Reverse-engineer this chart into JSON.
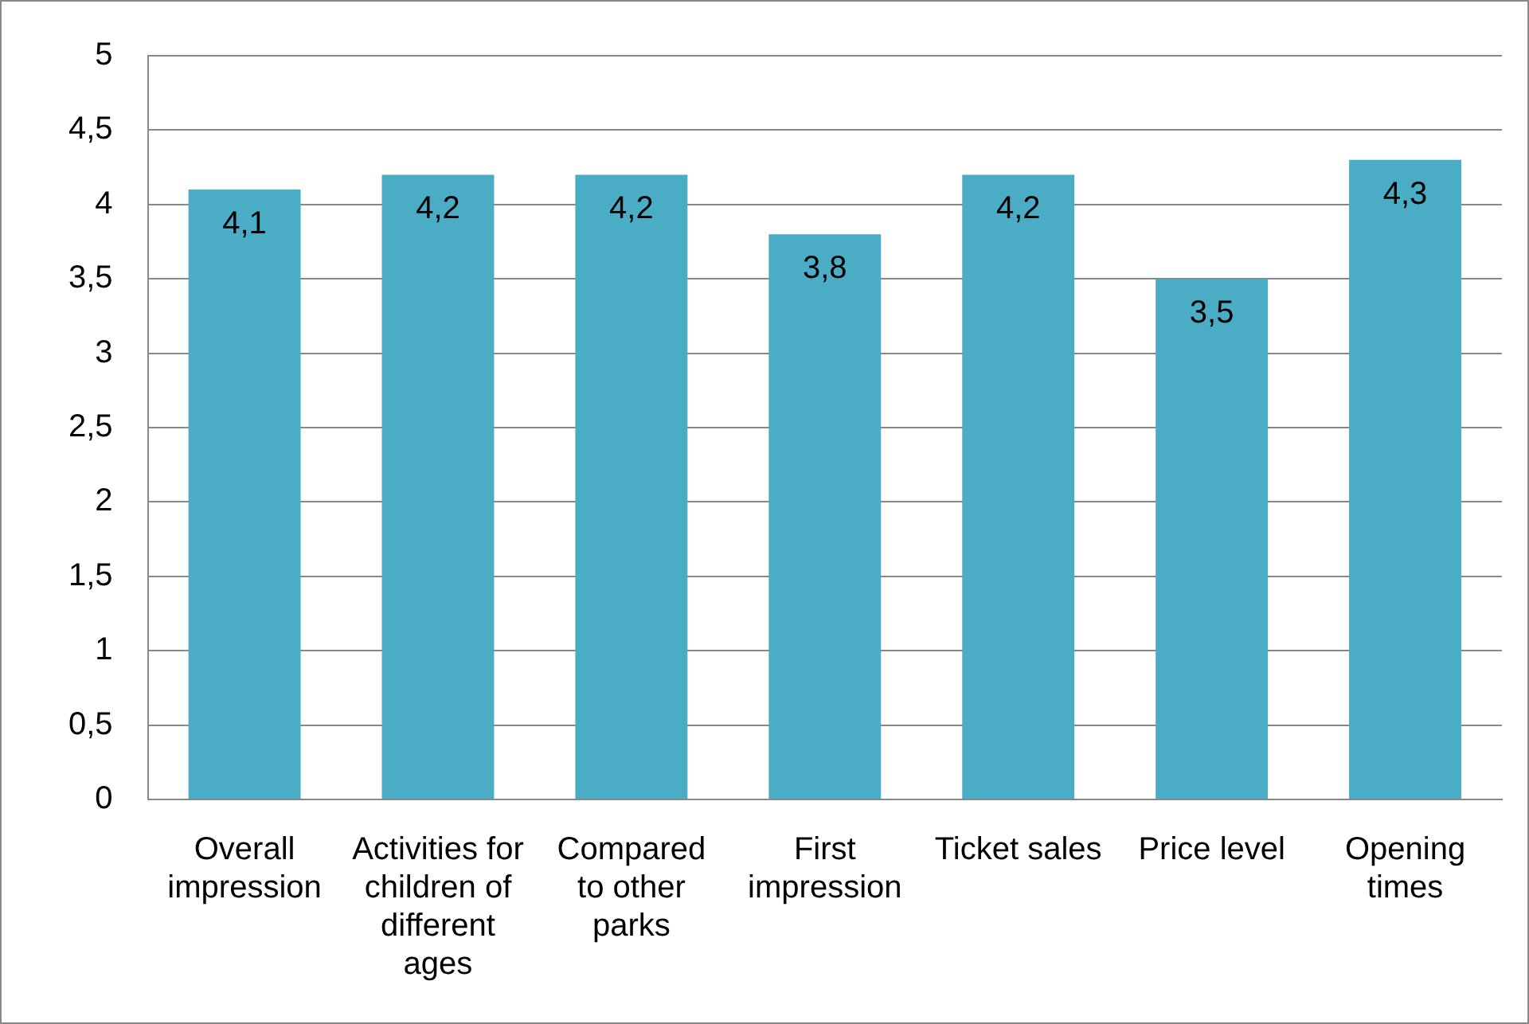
{
  "chart_data": {
    "type": "bar",
    "categories": [
      "Overall impression",
      "Activities for children of different ages",
      "Compared to other parks",
      "First impression",
      "Ticket sales",
      "Price level",
      "Opening times"
    ],
    "values": [
      4.1,
      4.2,
      4.2,
      3.8,
      4.2,
      3.5,
      4.3
    ],
    "value_labels": [
      "4,1",
      "4,2",
      "4,2",
      "3,8",
      "4,2",
      "3,5",
      "4,3"
    ],
    "color": "#4bacc6",
    "ylim": [
      0,
      5
    ],
    "yticks": [
      0,
      {
        "value": 0.5,
        "label": "0,5"
      },
      1,
      {
        "value": 1.5,
        "label": "1,5"
      },
      2,
      {
        "value": 2.5,
        "label": "2,5"
      },
      3,
      {
        "value": 3.5,
        "label": "3,5"
      },
      4,
      {
        "value": 4.5,
        "label": "4,5"
      },
      5
    ],
    "grid": "y",
    "legend": false
  }
}
